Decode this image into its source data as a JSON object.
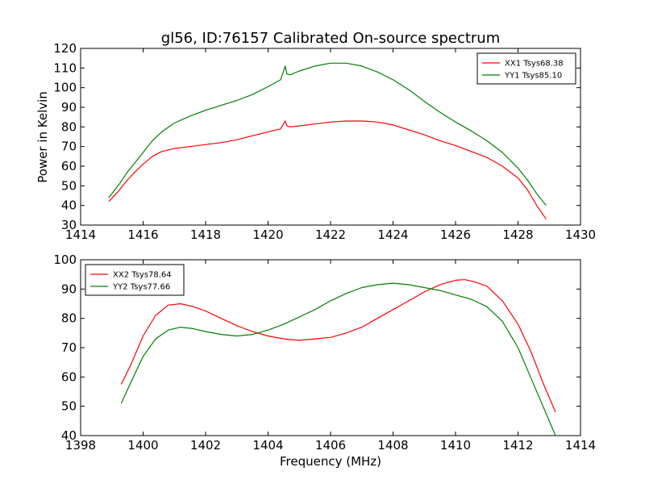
{
  "figure": {
    "title": "gl56, ID:76157 Calibrated On-source spectrum",
    "xlabel": "Frequency (MHz)",
    "ylabel": "Power in Kelvin"
  },
  "chart_data": [
    {
      "type": "line",
      "title": "gl56, ID:76157 Calibrated On-source spectrum",
      "xlabel": "",
      "ylabel": "Power in Kelvin",
      "xlim": [
        1414,
        1430
      ],
      "ylim": [
        30,
        120
      ],
      "xticks": [
        "1414",
        "1416",
        "1418",
        "1420",
        "1422",
        "1424",
        "1426",
        "1428",
        "1430"
      ],
      "yticks": [
        "30",
        "40",
        "50",
        "60",
        "70",
        "80",
        "90",
        "100",
        "110",
        "120"
      ],
      "grid": false,
      "legend_position": "top-right",
      "series": [
        {
          "name": "XX1 Tsys68.38",
          "color": "#ff0000",
          "x": [
            1414.9,
            1415.2,
            1415.5,
            1415.8,
            1416.0,
            1416.3,
            1416.6,
            1417.0,
            1417.5,
            1418.0,
            1418.5,
            1419.0,
            1419.5,
            1420.0,
            1420.4,
            1420.55,
            1420.6,
            1420.7,
            1421.0,
            1421.5,
            1422.0,
            1422.5,
            1423.0,
            1423.5,
            1424.0,
            1424.5,
            1425.0,
            1425.5,
            1426.0,
            1426.5,
            1427.0,
            1427.5,
            1428.0,
            1428.3,
            1428.6,
            1428.9
          ],
          "y": [
            42,
            47,
            53,
            58,
            61,
            65,
            67.5,
            69,
            70,
            71,
            72,
            73.5,
            75.5,
            77.5,
            79,
            83,
            80.5,
            80,
            80.5,
            81.5,
            82.5,
            83,
            83,
            82.5,
            81,
            78.5,
            76,
            73,
            70.5,
            67.5,
            64.5,
            60,
            54,
            48,
            40,
            33
          ]
        },
        {
          "name": "YY1 Tsys85.10",
          "color": "#008000",
          "x": [
            1414.9,
            1415.2,
            1415.5,
            1415.8,
            1416.0,
            1416.3,
            1416.6,
            1417.0,
            1417.5,
            1418.0,
            1418.5,
            1419.0,
            1419.5,
            1420.0,
            1420.4,
            1420.55,
            1420.6,
            1420.7,
            1421.0,
            1421.5,
            1422.0,
            1422.5,
            1423.0,
            1423.5,
            1424.0,
            1424.5,
            1425.0,
            1425.5,
            1426.0,
            1426.5,
            1427.0,
            1427.5,
            1428.0,
            1428.3,
            1428.6,
            1428.9
          ],
          "y": [
            44,
            50,
            57,
            63,
            67,
            73,
            77.5,
            82,
            85.5,
            88.5,
            91,
            93.5,
            96.5,
            100.5,
            104,
            111,
            107,
            106.5,
            108.5,
            111,
            112.5,
            112.5,
            111,
            108,
            104,
            99,
            93,
            87.5,
            82.5,
            78,
            73,
            67,
            59,
            53,
            46,
            40
          ]
        }
      ]
    },
    {
      "type": "line",
      "title": "",
      "xlabel": "Frequency (MHz)",
      "ylabel": "",
      "xlim": [
        1398,
        1414
      ],
      "ylim": [
        40,
        100
      ],
      "xticks": [
        "1398",
        "1400",
        "1402",
        "1404",
        "1406",
        "1408",
        "1410",
        "1412",
        "1414"
      ],
      "yticks": [
        "40",
        "50",
        "60",
        "70",
        "80",
        "90",
        "100"
      ],
      "grid": false,
      "legend_position": "top-left",
      "series": [
        {
          "name": "XX2 Tsys78.64",
          "color": "#ff0000",
          "x": [
            1399.3,
            1399.6,
            1400.0,
            1400.4,
            1400.8,
            1401.2,
            1401.6,
            1402.0,
            1402.5,
            1403.0,
            1403.5,
            1404.0,
            1404.5,
            1405.0,
            1405.5,
            1406.0,
            1406.5,
            1407.0,
            1407.5,
            1408.0,
            1408.5,
            1409.0,
            1409.5,
            1410.0,
            1410.3,
            1410.6,
            1411.0,
            1411.5,
            1412.0,
            1412.4,
            1412.8,
            1413.2
          ],
          "y": [
            57.5,
            64,
            74,
            81,
            84.5,
            85,
            84,
            82.5,
            80,
            77.5,
            75.5,
            74,
            73,
            72.5,
            73,
            73.5,
            75,
            77,
            80,
            83,
            86,
            89,
            91.5,
            93,
            93.2,
            92.5,
            91,
            86,
            78,
            69,
            58,
            48
          ]
        },
        {
          "name": "YY2 Tsys77.66",
          "color": "#008000",
          "x": [
            1399.3,
            1399.6,
            1400.0,
            1400.4,
            1400.8,
            1401.2,
            1401.6,
            1402.0,
            1402.5,
            1403.0,
            1403.5,
            1404.0,
            1404.5,
            1405.0,
            1405.5,
            1406.0,
            1406.5,
            1407.0,
            1407.5,
            1408.0,
            1408.5,
            1409.0,
            1409.5,
            1410.0,
            1410.5,
            1411.0,
            1411.5,
            1412.0,
            1412.4,
            1412.8,
            1413.2
          ],
          "y": [
            51,
            58,
            67,
            73,
            76,
            77,
            76.5,
            75.5,
            74.5,
            74,
            74.5,
            76,
            78,
            80.5,
            83,
            86,
            88.5,
            90.5,
            91.5,
            92,
            91.5,
            90.5,
            89.5,
            88,
            86.5,
            84,
            79,
            70,
            60,
            50,
            40
          ]
        }
      ]
    }
  ]
}
